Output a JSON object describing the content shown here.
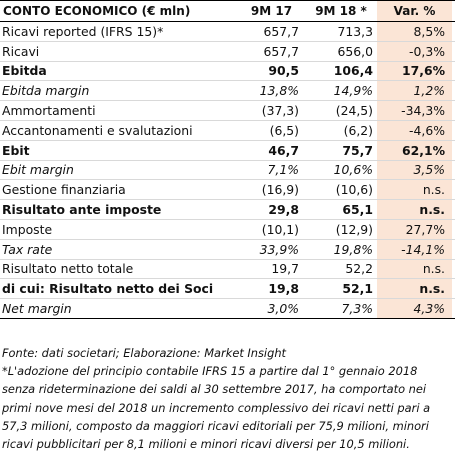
{
  "table": {
    "header": {
      "label": "CONTO ECONOMICO (€ mln)",
      "col_a": "9M 17",
      "col_b": "9M 18 *",
      "col_c": "Var. %"
    },
    "rows": [
      {
        "label": "Ricavi reported (IFRS 15)*",
        "a": "657,7",
        "b": "713,3",
        "c": "8,5%"
      },
      {
        "label": "Ricavi",
        "a": "657,7",
        "b": "656,0",
        "c": "-0,3%"
      },
      {
        "label": "Ebitda",
        "a": "90,5",
        "b": "106,4",
        "c": "17,6%"
      },
      {
        "label": "Ebitda margin",
        "a": "13,8%",
        "b": "14,9%",
        "c": "1,2%"
      },
      {
        "label": "Ammortamenti",
        "a": "(37,3)",
        "b": "(24,5)",
        "c": "-34,3%"
      },
      {
        "label": "Accantonamenti e svalutazioni",
        "a": "(6,5)",
        "b": "(6,2)",
        "c": "-4,6%"
      },
      {
        "label": "Ebit",
        "a": "46,7",
        "b": "75,7",
        "c": "62,1%"
      },
      {
        "label": "Ebit margin",
        "a": "7,1%",
        "b": "10,6%",
        "c": "3,5%"
      },
      {
        "label": "Gestione finanziaria",
        "a": "(16,9)",
        "b": "(10,6)",
        "c": "n.s."
      },
      {
        "label": "Risultato ante imposte",
        "a": "29,8",
        "b": "65,1",
        "c": "n.s."
      },
      {
        "label": "Imposte",
        "a": "(10,1)",
        "b": "(12,9)",
        "c": "27,7%"
      },
      {
        "label": "Tax rate",
        "a": "33,9%",
        "b": "19,8%",
        "c": "-14,1%"
      },
      {
        "label": "Risultato netto totale",
        "a": "19,7",
        "b": "52,2",
        "c": "n.s."
      },
      {
        "label": "di cui: Risultato netto dei Soci",
        "a": "19,8",
        "b": "52,1",
        "c": "n.s."
      },
      {
        "label": "Net margin",
        "a": "3,0%",
        "b": "7,3%",
        "c": "4,3%"
      }
    ]
  },
  "footer": {
    "source": "Fonte: dati societari; Elaborazione: Market Insight",
    "note_lines": [
      "*L'adozione del principio contabile IFRS 15 a partire dal 1° gennaio 2018",
      "senza rideterminazione dei saldi al 30 settembre 2017, ha comportato nei",
      "primi nove mesi del 2018 un incremento complessivo dei ricavi netti pari a",
      "57,3 milioni, composto da maggiori ricavi editoriali per 75,9 milioni, minori",
      "ricavi pubblicitari per 8,1 milioni e minori ricavi diversi per 10,5 milioni."
    ]
  },
  "colors": {
    "var_column_bg": "#fbe5d6",
    "rule": "#000000",
    "row_divider": "#d9d9d9"
  }
}
